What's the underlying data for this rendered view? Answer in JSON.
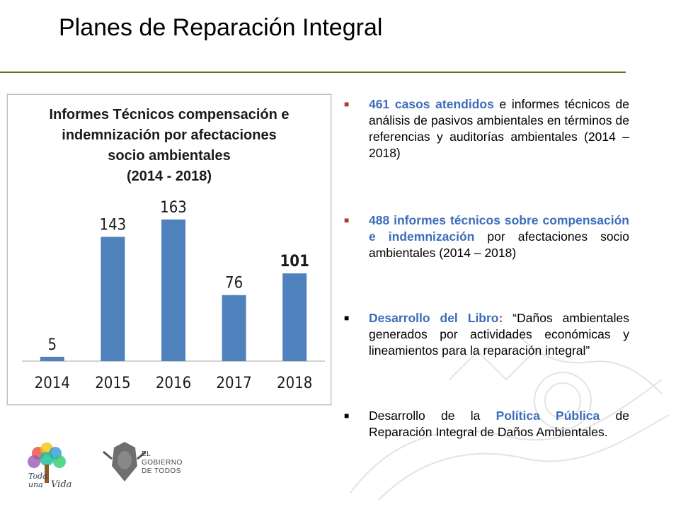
{
  "slide": {
    "title": "Planes de Reparación Integral"
  },
  "chart": {
    "title_lines": [
      "Informes Técnicos  compensación e",
      "indemnización por afectaciones",
      "socio ambientales",
      "(2014 - 2018)"
    ]
  },
  "chart_data": {
    "type": "bar",
    "title": "Informes Técnicos compensación e indemnización por afectaciones socio ambientales (2014 - 2018)",
    "categories": [
      "2014",
      "2015",
      "2016",
      "2017",
      "2018"
    ],
    "values": [
      5,
      143,
      163,
      76,
      101
    ],
    "bold_value_index": 4,
    "ylim": [
      0,
      180
    ],
    "grid": false,
    "legend": "none",
    "bar_color": "#4f81bd"
  },
  "bullets": [
    {
      "lead": "461 casos atendidos",
      "rest": " e informes técnicos de análisis de pasivos ambientales en términos de referencias y auditorías ambientales (2014 – 2018)"
    },
    {
      "lead": "488 informes técnicos sobre compensación e indemnización",
      "rest": " por afectaciones socio ambientales (2014 – 2018)"
    },
    {
      "lead": "Desarrollo del Libro",
      "colon": ":",
      "rest": " “Daños ambientales generados por actividades económicas y lineamientos para la reparación integral”"
    },
    {
      "pre": "Desarrollo de la ",
      "lead": "Política Pública",
      "rest": " de Reparación Integral de Daños Ambientales."
    }
  ],
  "logos": {
    "toda_una_vida": "Toda una Vida",
    "gov_line1": "EL",
    "gov_line2": "GOBIERNO",
    "gov_line3": "DE TODOS"
  },
  "colors": {
    "accent_blue": "#3d6dba",
    "accent_red": "#c0392b",
    "rule": "#6b6b2b"
  }
}
